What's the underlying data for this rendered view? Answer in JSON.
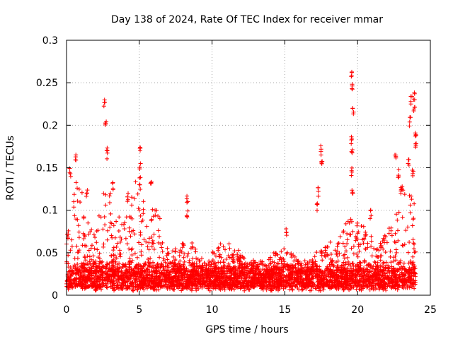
{
  "chart_data": {
    "type": "scatter",
    "title": "Day 138 of 2024, Rate Of TEC Index for receiver mmar",
    "xlabel": "GPS time / hours",
    "ylabel": "ROTI / TECUs",
    "xlim": [
      0,
      25
    ],
    "ylim": [
      0,
      0.3
    ],
    "x_ticks": [
      0,
      5,
      10,
      15,
      20,
      25
    ],
    "x_tick_labels": [
      "0",
      "5",
      "10",
      "15",
      "20",
      "25"
    ],
    "y_ticks": [
      0,
      0.05,
      0.1,
      0.15,
      0.2,
      0.25,
      0.3
    ],
    "y_tick_labels": [
      "0",
      "0.05",
      "0.1",
      "0.15",
      "0.2",
      "0.25",
      "0.3"
    ],
    "grid": true,
    "marker": "+",
    "color": "#ff0000",
    "x_range_of_data": [
      0,
      24
    ],
    "baseline_range": [
      0.005,
      0.03
    ],
    "envelope": [
      {
        "x": 0.0,
        "y": 0.06
      },
      {
        "x": 0.3,
        "y": 0.145
      },
      {
        "x": 0.6,
        "y": 0.12
      },
      {
        "x": 0.8,
        "y": 0.165
      },
      {
        "x": 1.2,
        "y": 0.1
      },
      {
        "x": 2.0,
        "y": 0.07
      },
      {
        "x": 2.7,
        "y": 0.175
      },
      {
        "x": 3.2,
        "y": 0.09
      },
      {
        "x": 4.3,
        "y": 0.1
      },
      {
        "x": 5.0,
        "y": 0.16
      },
      {
        "x": 5.6,
        "y": 0.07
      },
      {
        "x": 6.0,
        "y": 0.12
      },
      {
        "x": 7.0,
        "y": 0.05
      },
      {
        "x": 8.3,
        "y": 0.07
      },
      {
        "x": 9.5,
        "y": 0.04
      },
      {
        "x": 11.0,
        "y": 0.07
      },
      {
        "x": 12.5,
        "y": 0.04
      },
      {
        "x": 13.5,
        "y": 0.04
      },
      {
        "x": 15.0,
        "y": 0.06
      },
      {
        "x": 16.5,
        "y": 0.03
      },
      {
        "x": 17.5,
        "y": 0.07
      },
      {
        "x": 18.5,
        "y": 0.06
      },
      {
        "x": 19.6,
        "y": 0.1
      },
      {
        "x": 20.5,
        "y": 0.08
      },
      {
        "x": 21.5,
        "y": 0.06
      },
      {
        "x": 22.5,
        "y": 0.09
      },
      {
        "x": 23.0,
        "y": 0.14
      },
      {
        "x": 23.8,
        "y": 0.12
      },
      {
        "x": 24.0,
        "y": 0.1
      }
    ],
    "spikes": [
      {
        "x": 0.25,
        "y": 0.15
      },
      {
        "x": 0.65,
        "y": 0.17
      },
      {
        "x": 1.4,
        "y": 0.125
      },
      {
        "x": 2.6,
        "y": 0.23
      },
      {
        "x": 2.7,
        "y": 0.21
      },
      {
        "x": 2.8,
        "y": 0.175
      },
      {
        "x": 3.2,
        "y": 0.135
      },
      {
        "x": 4.2,
        "y": 0.12
      },
      {
        "x": 5.05,
        "y": 0.18
      },
      {
        "x": 5.05,
        "y": 0.16
      },
      {
        "x": 5.05,
        "y": 0.14
      },
      {
        "x": 5.8,
        "y": 0.135
      },
      {
        "x": 8.3,
        "y": 0.121
      },
      {
        "x": 8.3,
        "y": 0.102
      },
      {
        "x": 15.1,
        "y": 0.082
      },
      {
        "x": 17.3,
        "y": 0.128
      },
      {
        "x": 17.5,
        "y": 0.176
      },
      {
        "x": 17.55,
        "y": 0.162
      },
      {
        "x": 17.2,
        "y": 0.108
      },
      {
        "x": 19.6,
        "y": 0.267
      },
      {
        "x": 19.65,
        "y": 0.25
      },
      {
        "x": 19.7,
        "y": 0.22
      },
      {
        "x": 19.6,
        "y": 0.19
      },
      {
        "x": 19.6,
        "y": 0.175
      },
      {
        "x": 19.6,
        "y": 0.15
      },
      {
        "x": 19.65,
        "y": 0.125
      },
      {
        "x": 20.9,
        "y": 0.102
      },
      {
        "x": 22.6,
        "y": 0.17
      },
      {
        "x": 22.8,
        "y": 0.15
      },
      {
        "x": 23.0,
        "y": 0.13
      },
      {
        "x": 23.7,
        "y": 0.235
      },
      {
        "x": 23.9,
        "y": 0.24
      },
      {
        "x": 23.9,
        "y": 0.225
      },
      {
        "x": 23.6,
        "y": 0.21
      },
      {
        "x": 24.0,
        "y": 0.195
      },
      {
        "x": 24.0,
        "y": 0.18
      },
      {
        "x": 23.5,
        "y": 0.16
      },
      {
        "x": 23.8,
        "y": 0.148
      }
    ]
  }
}
